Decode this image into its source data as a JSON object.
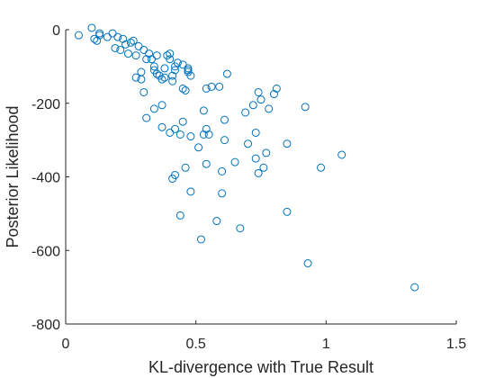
{
  "chart_data": {
    "type": "scatter",
    "title": "",
    "xlabel": "KL-divergence with True Result",
    "ylabel": "Posterior Likelihood",
    "xlim": [
      0,
      1.5
    ],
    "ylim": [
      -800,
      0
    ],
    "xticks": [
      0,
      0.5,
      1,
      1.5
    ],
    "xtick_labels": [
      "0",
      "0.5",
      "1",
      "1.5"
    ],
    "yticks": [
      0,
      -200,
      -400,
      -600,
      -800
    ],
    "ytick_labels": [
      "0",
      "-200",
      "-400",
      "-600",
      "-800"
    ],
    "grid": false,
    "legend": "none",
    "marker": "circle-open",
    "color": "#0072BD",
    "points": [
      [
        0.05,
        -15
      ],
      [
        0.1,
        5
      ],
      [
        0.11,
        -25
      ],
      [
        0.12,
        -30
      ],
      [
        0.13,
        -10
      ],
      [
        0.13,
        -15
      ],
      [
        0.16,
        -20
      ],
      [
        0.18,
        -10
      ],
      [
        0.19,
        -50
      ],
      [
        0.2,
        -20
      ],
      [
        0.21,
        -55
      ],
      [
        0.22,
        -25
      ],
      [
        0.23,
        -40
      ],
      [
        0.24,
        -65
      ],
      [
        0.25,
        -35
      ],
      [
        0.26,
        -30
      ],
      [
        0.27,
        -70
      ],
      [
        0.27,
        -130
      ],
      [
        0.28,
        -45
      ],
      [
        0.29,
        -115
      ],
      [
        0.29,
        -135
      ],
      [
        0.3,
        -55
      ],
      [
        0.3,
        -170
      ],
      [
        0.31,
        -240
      ],
      [
        0.31,
        -80
      ],
      [
        0.32,
        -65
      ],
      [
        0.33,
        -80
      ],
      [
        0.34,
        -100
      ],
      [
        0.34,
        -110
      ],
      [
        0.34,
        -215
      ],
      [
        0.35,
        -70
      ],
      [
        0.35,
        -120
      ],
      [
        0.36,
        -125
      ],
      [
        0.37,
        -205
      ],
      [
        0.37,
        -135
      ],
      [
        0.37,
        -265
      ],
      [
        0.38,
        -105
      ],
      [
        0.38,
        -130
      ],
      [
        0.39,
        -70
      ],
      [
        0.4,
        -65
      ],
      [
        0.4,
        -80
      ],
      [
        0.4,
        -280
      ],
      [
        0.41,
        -405
      ],
      [
        0.41,
        -125
      ],
      [
        0.41,
        -140
      ],
      [
        0.42,
        -100
      ],
      [
        0.42,
        -110
      ],
      [
        0.42,
        -395
      ],
      [
        0.42,
        -270
      ],
      [
        0.43,
        -90
      ],
      [
        0.44,
        -285
      ],
      [
        0.44,
        -505
      ],
      [
        0.45,
        -95
      ],
      [
        0.45,
        -250
      ],
      [
        0.45,
        -160
      ],
      [
        0.46,
        -375
      ],
      [
        0.46,
        -165
      ],
      [
        0.47,
        -105
      ],
      [
        0.47,
        -110
      ],
      [
        0.47,
        -115
      ],
      [
        0.48,
        -440
      ],
      [
        0.48,
        -125
      ],
      [
        0.48,
        -290
      ],
      [
        0.51,
        -320
      ],
      [
        0.52,
        -570
      ],
      [
        0.53,
        -220
      ],
      [
        0.53,
        -285
      ],
      [
        0.54,
        -160
      ],
      [
        0.54,
        -365
      ],
      [
        0.54,
        -270
      ],
      [
        0.55,
        -285
      ],
      [
        0.56,
        -155
      ],
      [
        0.58,
        -520
      ],
      [
        0.59,
        -155
      ],
      [
        0.6,
        -385
      ],
      [
        0.6,
        -445
      ],
      [
        0.61,
        -300
      ],
      [
        0.61,
        -245
      ],
      [
        0.62,
        -120
      ],
      [
        0.65,
        -360
      ],
      [
        0.67,
        -540
      ],
      [
        0.69,
        -225
      ],
      [
        0.7,
        -310
      ],
      [
        0.72,
        -205
      ],
      [
        0.73,
        -280
      ],
      [
        0.73,
        -350
      ],
      [
        0.74,
        -390
      ],
      [
        0.74,
        -170
      ],
      [
        0.75,
        -190
      ],
      [
        0.76,
        -375
      ],
      [
        0.77,
        -335
      ],
      [
        0.78,
        -215
      ],
      [
        0.8,
        -175
      ],
      [
        0.81,
        -160
      ],
      [
        0.85,
        -495
      ],
      [
        0.85,
        -310
      ],
      [
        0.92,
        -210
      ],
      [
        0.93,
        -635
      ],
      [
        0.98,
        -375
      ],
      [
        1.06,
        -340
      ],
      [
        1.34,
        -700
      ]
    ]
  }
}
